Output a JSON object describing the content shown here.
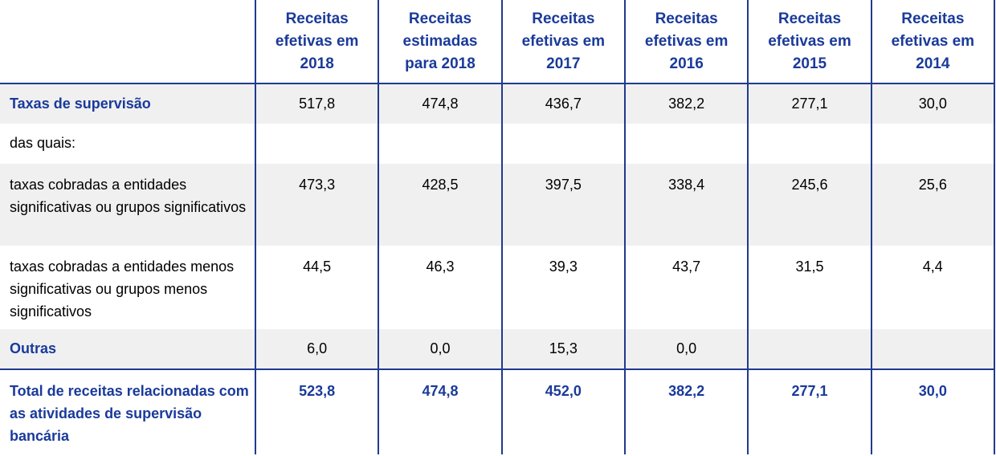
{
  "table": {
    "columns": [
      "Receitas efetivas em 2018",
      "Receitas estimadas para 2018",
      "Receitas efetivas em 2017",
      "Receitas efetivas em 2016",
      "Receitas efetivas em 2015",
      "Receitas efetivas em 2014"
    ],
    "rows": [
      {
        "label": "Taxas de supervisão",
        "values": [
          "517,8",
          "474,8",
          "436,7",
          "382,2",
          "277,1",
          "30,0"
        ]
      },
      {
        "label": "das quais:",
        "values": [
          null,
          null,
          null,
          null,
          null,
          null
        ]
      },
      {
        "label": "taxas cobradas a entidades significativas ou grupos significativos",
        "values": [
          "473,3",
          "428,5",
          "397,5",
          "338,4",
          "245,6",
          "25,6"
        ]
      },
      {
        "label": "taxas cobradas a entidades menos significativas ou grupos menos significativos",
        "values": [
          "44,5",
          "46,3",
          "39,3",
          "43,7",
          "31,5",
          "4,4"
        ]
      },
      {
        "label": "Outras",
        "values": [
          "6,0",
          "0,0",
          "15,3",
          "0,0",
          null,
          null
        ]
      },
      {
        "label": "Total de receitas relacionadas com as atividades de supervisão bancária",
        "values": [
          "523,8",
          "474,8",
          "452,0",
          "382,2",
          "277,1",
          "30,0"
        ]
      }
    ]
  }
}
